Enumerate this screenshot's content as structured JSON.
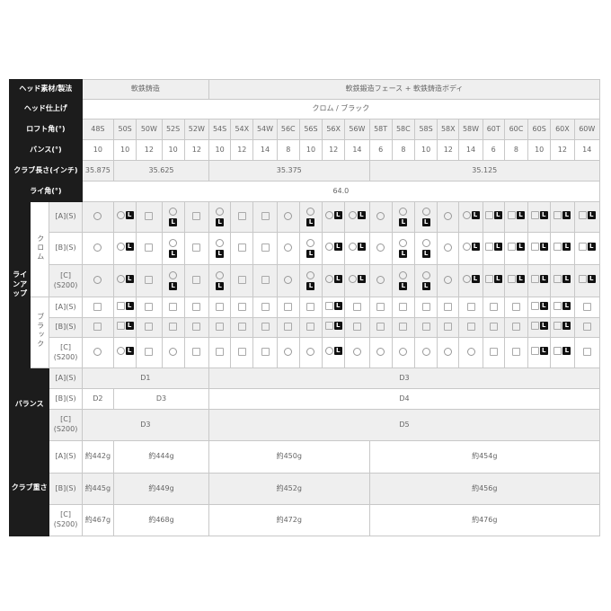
{
  "models": [
    "48S",
    "50S",
    "50W",
    "52S",
    "52W",
    "54S",
    "54X",
    "54W",
    "56C",
    "56S",
    "56X",
    "56W",
    "58T",
    "58C",
    "58S",
    "58X",
    "58W",
    "60T",
    "60C",
    "60S",
    "60X",
    "60W"
  ],
  "head_material": {
    "label": "ヘッド素材/製法",
    "cells": [
      {
        "text": "軟鉄鋳造",
        "span": 5
      },
      {
        "text": "軟鉄鍛造フェース + 軟鉄鋳造ボディ",
        "span": 17
      }
    ]
  },
  "head_finish": {
    "label": "ヘッド仕上げ",
    "cells": [
      {
        "text": "クロム / ブラック",
        "span": 22
      }
    ]
  },
  "loft": {
    "label": "ロフト角(°)"
  },
  "bounce": {
    "label": "バンス(°)",
    "values": [
      "10",
      "10",
      "12",
      "10",
      "12",
      "10",
      "12",
      "14",
      "8",
      "10",
      "12",
      "14",
      "6",
      "8",
      "10",
      "12",
      "14",
      "6",
      "8",
      "10",
      "12",
      "14"
    ]
  },
  "length": {
    "label": "クラブ長さ(インチ)",
    "cells": [
      {
        "text": "35.875",
        "span": 1
      },
      {
        "text": "35.625",
        "span": 4
      },
      {
        "text": "35.375",
        "span": 7
      },
      {
        "text": "35.125",
        "span": 10
      }
    ]
  },
  "lie": {
    "label": "ライ角(°)",
    "cells": [
      {
        "text": "64.0",
        "span": 22
      }
    ]
  },
  "lineup": {
    "label": "ラインアップ",
    "groups": [
      {
        "name": "クロム",
        "rows": [
          {
            "option": "[A](S)",
            "marks": [
              "circle",
              "circle+L",
              "square",
              "circle/L",
              "square",
              "circle/L",
              "square",
              "square",
              "circle",
              "circle/L",
              "circle+L",
              "circle+L",
              "circle",
              "circle/L",
              "circle/L",
              "circle",
              "circle+L",
              "square+L",
              "square+L",
              "square+L",
              "square+L",
              "square+L"
            ]
          },
          {
            "option": "[B](S)",
            "marks": [
              "circle",
              "circle+L",
              "square",
              "circle/L",
              "square",
              "circle/L",
              "square",
              "square",
              "circle",
              "circle/L",
              "circle+L",
              "circle+L",
              "circle",
              "circle/L",
              "circle/L",
              "circle",
              "circle+L",
              "square+L",
              "square+L",
              "square+L",
              "square+L",
              "square+L"
            ]
          },
          {
            "option": "[C] (S200)",
            "marks": [
              "circle",
              "circle+L",
              "square",
              "circle/L",
              "square",
              "circle/L",
              "square",
              "square",
              "circle",
              "circle/L",
              "circle+L",
              "circle+L",
              "circle",
              "circle/L",
              "circle/L",
              "circle",
              "circle+L",
              "square+L",
              "square+L",
              "square+L",
              "square+L",
              "square+L"
            ]
          }
        ]
      },
      {
        "name": "ブラック",
        "rows": [
          {
            "option": "[A](S)",
            "marks": [
              "square",
              "square+L",
              "square",
              "square",
              "square",
              "square",
              "square",
              "square",
              "square",
              "square",
              "square+L",
              "square",
              "square",
              "square",
              "square",
              "square",
              "square",
              "square",
              "square",
              "square+L",
              "square+L",
              "square"
            ]
          },
          {
            "option": "[B](S)",
            "marks": [
              "square",
              "square+L",
              "square",
              "square",
              "square",
              "square",
              "square",
              "square",
              "square",
              "square",
              "square+L",
              "square",
              "square",
              "square",
              "square",
              "square",
              "square",
              "square",
              "square",
              "square+L",
              "square+L",
              "square"
            ]
          },
          {
            "option": "[C] (S200)",
            "marks": [
              "circle",
              "circle+L",
              "square",
              "circle",
              "square",
              "square",
              "square",
              "square",
              "circle",
              "circle",
              "circle+L",
              "circle",
              "circle",
              "circle",
              "circle",
              "circle",
              "circle",
              "square",
              "square",
              "square+L",
              "square+L",
              "square"
            ]
          }
        ]
      }
    ],
    "badge_letter": "L"
  },
  "balance": {
    "label": "バランス",
    "rows": [
      {
        "option": "[A](S)",
        "cells": [
          {
            "text": "D1",
            "span": 5
          },
          {
            "text": "D3",
            "span": 17
          }
        ]
      },
      {
        "option": "[B](S)",
        "cells": [
          {
            "text": "D2",
            "span": 1
          },
          {
            "text": "D3",
            "span": 4
          },
          {
            "text": "D4",
            "span": 17
          }
        ]
      },
      {
        "option": "[C] (S200)",
        "cells": [
          {
            "text": "D3",
            "span": 5
          },
          {
            "text": "D5",
            "span": 17
          }
        ]
      }
    ]
  },
  "weight": {
    "label": "クラブ重さ",
    "rows": [
      {
        "option": "[A](S)",
        "cells": [
          {
            "text": "約442g",
            "span": 1
          },
          {
            "text": "約444g",
            "span": 4
          },
          {
            "text": "約450g",
            "span": 7
          },
          {
            "text": "約454g",
            "span": 10
          }
        ]
      },
      {
        "option": "[B](S)",
        "cells": [
          {
            "text": "約445g",
            "span": 1
          },
          {
            "text": "約449g",
            "span": 4
          },
          {
            "text": "約452g",
            "span": 7
          },
          {
            "text": "約456g",
            "span": 10
          }
        ]
      },
      {
        "option": "[C] (S200)",
        "cells": [
          {
            "text": "約467g",
            "span": 1
          },
          {
            "text": "約468g",
            "span": 4
          },
          {
            "text": "約472g",
            "span": 7
          },
          {
            "text": "約476g",
            "span": 10
          }
        ]
      }
    ]
  }
}
